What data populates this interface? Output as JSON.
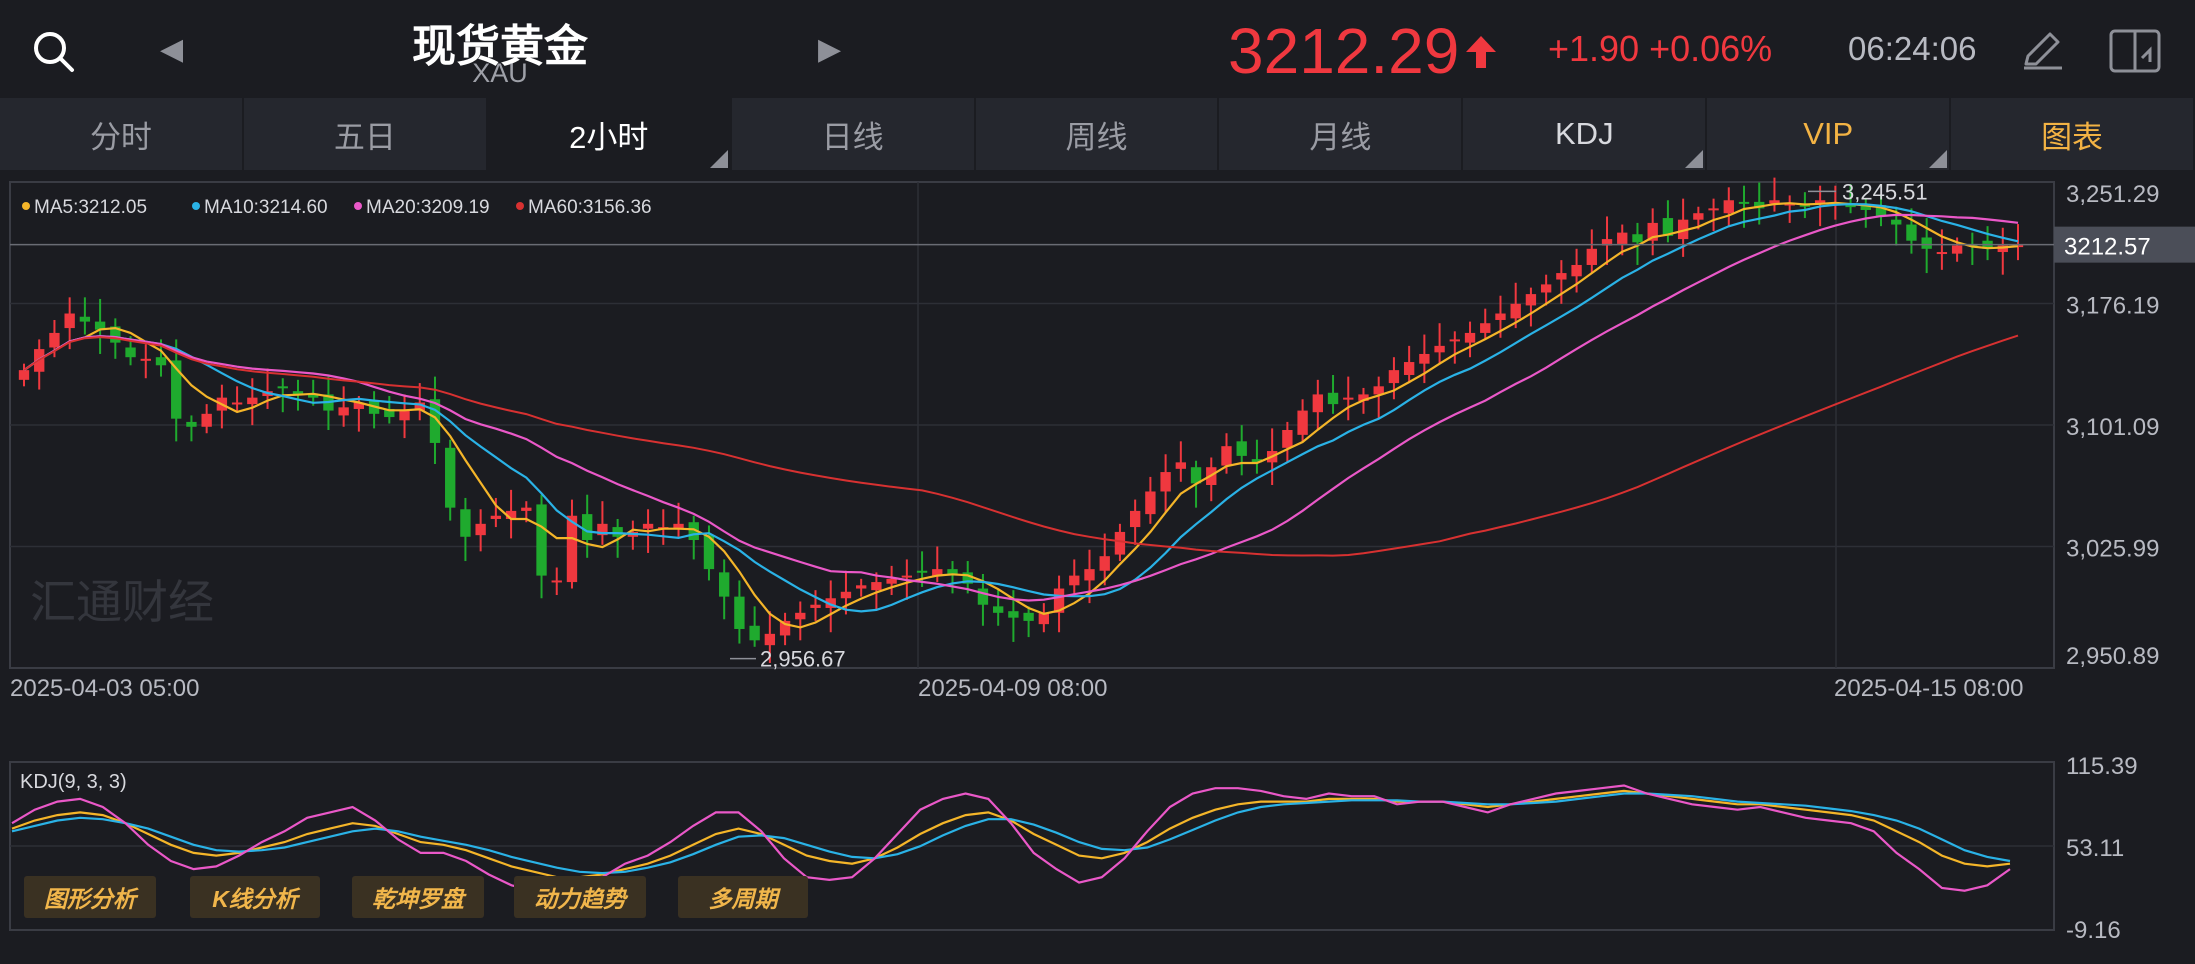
{
  "header": {
    "title": "现货黄金",
    "subtitle": "XAU",
    "price": "3212.29",
    "change": "+1.90 +0.06%",
    "time": "06:24:06",
    "colors": {
      "up": "#f0383f",
      "down": "#1faa2e",
      "bg": "#1b1c21",
      "accent_gold": "#f3b344"
    },
    "icons": [
      "search-icon",
      "arrow-left-icon",
      "arrow-right-icon",
      "price-up-arrow-icon",
      "pen-icon",
      "layout-icon"
    ]
  },
  "tabs": [
    {
      "label": "分时",
      "active": false
    },
    {
      "label": "五日",
      "active": false
    },
    {
      "label": "2小时",
      "active": true
    },
    {
      "label": "日线",
      "active": false
    },
    {
      "label": "周线",
      "active": false
    },
    {
      "label": "月线",
      "active": false
    },
    {
      "label": "KDJ",
      "active": false
    },
    {
      "label": "VIP",
      "active": false
    },
    {
      "label": "图表",
      "active": false
    }
  ],
  "ma_legend": [
    {
      "label": "MA5:3212.05",
      "color": "#f4b529"
    },
    {
      "label": "MA10:3214.60",
      "color": "#2ab2e6"
    },
    {
      "label": "MA20:3209.19",
      "color": "#ea58c8"
    },
    {
      "label": "MA60:3156.36",
      "color": "#d73131"
    }
  ],
  "watermark": "汇通财经",
  "tool_buttons": [
    "图形分析",
    "K线分析",
    "乾坤罗盘",
    "动力趋势",
    "多周期"
  ],
  "kdj_label": "KDJ(9, 3, 3)",
  "chart_data": [
    {
      "type": "candlestick",
      "ylim": [
        2950.89,
        3251.29
      ],
      "y_ticks": [
        "3,251.29",
        "3,176.19",
        "3,101.09",
        "3,025.99",
        "2,950.89"
      ],
      "current_price_label": "3212.57",
      "current_price": 3212.57,
      "x_labels": [
        "2025-04-03 05:00",
        "2025-04-09 08:00",
        "2025-04-15 08:00"
      ],
      "annotations": [
        {
          "text": "3,245.51",
          "value": 3245.51
        },
        {
          "text": "2,956.67",
          "value": 2956.67
        }
      ],
      "closes": [
        3135,
        3148,
        3158,
        3170,
        3165,
        3160,
        3152,
        3143,
        3142,
        3138,
        3105,
        3100,
        3108,
        3118,
        3115,
        3118,
        3122,
        3124,
        3120,
        3118,
        3110,
        3112,
        3115,
        3108,
        3106,
        3110,
        3115,
        3090,
        3050,
        3032,
        3040,
        3045,
        3048,
        3050,
        3008,
        3005,
        3045,
        3030,
        3040,
        3032,
        3035,
        3040,
        3038,
        3040,
        3030,
        3012,
        2995,
        2975,
        2968,
        2972,
        2980,
        2985,
        2990,
        2994,
        2998,
        3002,
        3004,
        3006,
        3008,
        3010,
        3012,
        3008,
        3003,
        2990,
        2985,
        2982,
        2980,
        2985,
        3000,
        3008,
        3012,
        3020,
        3035,
        3048,
        3060,
        3072,
        3078,
        3065,
        3075,
        3088,
        3082,
        3078,
        3085,
        3098,
        3110,
        3120,
        3114,
        3118,
        3120,
        3125,
        3135,
        3140,
        3145,
        3150,
        3154,
        3158,
        3164,
        3170,
        3176,
        3182,
        3188,
        3195,
        3200,
        3210,
        3216,
        3220,
        3214,
        3226,
        3218,
        3228,
        3232,
        3235,
        3240,
        3238,
        3235,
        3240,
        3238,
        3236,
        3240,
        3238,
        3236,
        3234,
        3230,
        3225,
        3215,
        3210,
        3208,
        3212,
        3212,
        3210,
        3212,
        3212.29
      ],
      "ma5_last": 3212.05,
      "ma10_last": 3214.6,
      "ma20_last": 3209.19,
      "ma60_last": 3156.36
    },
    {
      "type": "line",
      "title": "KDJ(9, 3, 3)",
      "ylim": [
        -9.16,
        115.39
      ],
      "y_ticks": [
        "115.39",
        "53.11",
        "-9.16"
      ],
      "K": [
        66,
        72,
        76,
        78,
        76,
        70,
        62,
        54,
        48,
        46,
        48,
        52,
        56,
        62,
        66,
        70,
        68,
        62,
        56,
        54,
        50,
        44,
        38,
        34,
        30,
        30,
        32,
        36,
        40,
        46,
        54,
        62,
        66,
        62,
        54,
        46,
        42,
        40,
        44,
        52,
        62,
        70,
        76,
        78,
        72,
        62,
        54,
        46,
        44,
        48,
        56,
        66,
        74,
        80,
        84,
        86,
        86,
        86,
        88,
        88,
        88,
        86,
        86,
        86,
        84,
        82,
        84,
        86,
        88,
        90,
        92,
        94,
        92,
        90,
        88,
        86,
        84,
        84,
        82,
        80,
        78,
        76,
        72,
        64,
        56,
        46,
        40,
        38,
        40
      ],
      "D": [
        64,
        68,
        72,
        74,
        73,
        70,
        66,
        60,
        54,
        50,
        49,
        50,
        52,
        56,
        60,
        64,
        66,
        64,
        60,
        57,
        54,
        50,
        45,
        41,
        37,
        34,
        33,
        34,
        37,
        41,
        47,
        54,
        60,
        61,
        59,
        54,
        49,
        45,
        44,
        47,
        53,
        61,
        68,
        73,
        73,
        69,
        63,
        56,
        51,
        50,
        52,
        58,
        65,
        72,
        78,
        82,
        84,
        85,
        86,
        87,
        87,
        87,
        86,
        86,
        85,
        84,
        84,
        85,
        86,
        88,
        90,
        92,
        92,
        91,
        90,
        88,
        86,
        85,
        84,
        83,
        81,
        79,
        76,
        72,
        66,
        58,
        50,
        45,
        42
      ],
      "J": [
        70,
        80,
        86,
        88,
        82,
        70,
        54,
        42,
        36,
        38,
        46,
        56,
        64,
        74,
        78,
        82,
        72,
        58,
        48,
        48,
        42,
        32,
        24,
        20,
        16,
        22,
        30,
        40,
        46,
        56,
        68,
        78,
        78,
        64,
        44,
        30,
        28,
        30,
        44,
        62,
        80,
        88,
        92,
        88,
        70,
        48,
        36,
        26,
        30,
        44,
        64,
        82,
        92,
        96,
        96,
        94,
        90,
        88,
        92,
        90,
        90,
        84,
        86,
        86,
        82,
        78,
        84,
        88,
        92,
        94,
        96,
        98,
        92,
        88,
        84,
        82,
        80,
        82,
        78,
        74,
        72,
        70,
        64,
        48,
        36,
        22,
        20,
        24,
        36
      ]
    }
  ]
}
